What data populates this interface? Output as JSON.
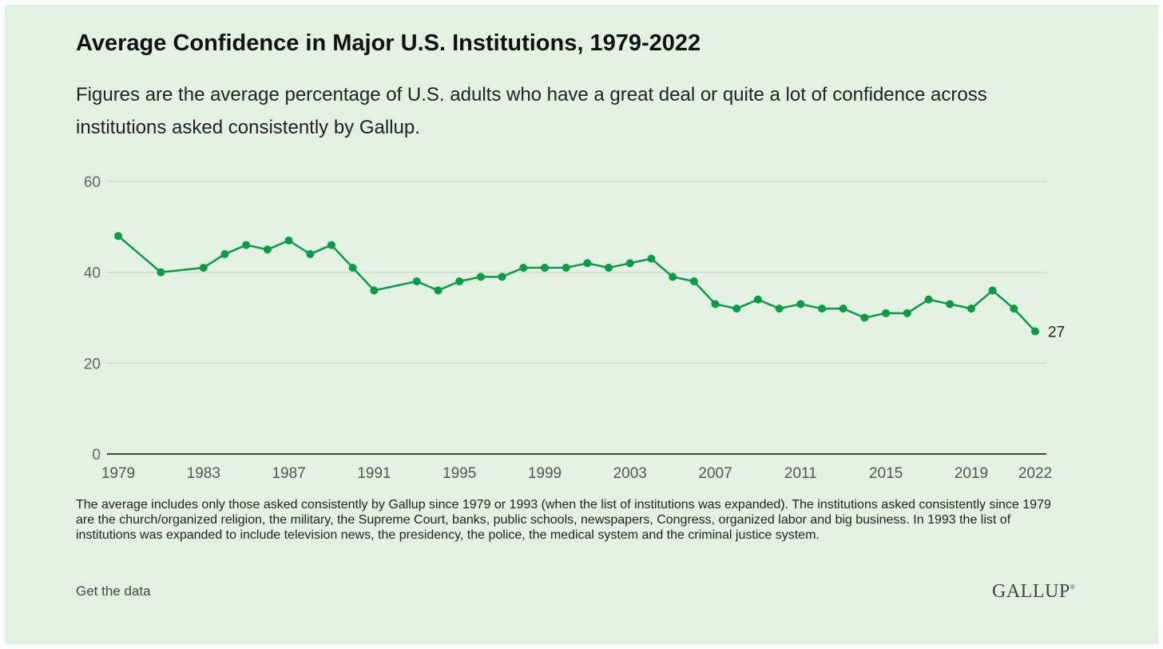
{
  "title": "Average Confidence in Major U.S. Institutions, 1979-2022",
  "subtitle": "Figures are the average percentage of U.S. adults who have a great deal or quite a lot of confidence across institutions asked consistently by Gallup.",
  "footnote": "The average includes only those asked consistently by Gallup since 1979 or 1993 (when the list of institutions was expanded). The institutions asked consistently since 1979 are the church/organized religion, the military, the Supreme Court, banks, public schools, newspapers, Congress, organized labor and big business. In 1993 the list of institutions was expanded to include television news, the presidency, the police, the medical system and the criminal justice system.",
  "get_data_label": "Get the data",
  "logo_text": "GALLUP",
  "logo_mark": "®",
  "colors": {
    "background": "#e3f1e3",
    "line": "#0c9a48",
    "grid": "#c5d6c5",
    "axis": "#111111"
  },
  "chart_data": {
    "type": "line",
    "title": "Average Confidence in Major U.S. Institutions, 1979-2022",
    "xlabel": "",
    "ylabel": "",
    "xlim": [
      1979,
      2022
    ],
    "ylim": [
      0,
      60
    ],
    "yticks": [
      0,
      20,
      40,
      60
    ],
    "xticks": [
      1979,
      1983,
      1987,
      1991,
      1995,
      1999,
      2003,
      2007,
      2011,
      2015,
      2019,
      2022
    ],
    "grid": true,
    "legend": "none",
    "end_label": "27",
    "series": [
      {
        "color": "#0c9a48",
        "x": [
          1979,
          1981,
          1983,
          1984,
          1985,
          1986,
          1987,
          1988,
          1989,
          1990,
          1991,
          1993,
          1994,
          1995,
          1996,
          1997,
          1998,
          1999,
          2000,
          2001,
          2002,
          2003,
          2004,
          2005,
          2006,
          2007,
          2008,
          2009,
          2010,
          2011,
          2012,
          2013,
          2014,
          2015,
          2016,
          2017,
          2018,
          2019,
          2020,
          2021,
          2022
        ],
        "values": [
          48,
          40,
          41,
          44,
          46,
          45,
          47,
          44,
          46,
          41,
          36,
          38,
          36,
          38,
          39,
          39,
          41,
          41,
          41,
          42,
          41,
          42,
          43,
          39,
          38,
          33,
          32,
          34,
          32,
          33,
          32,
          32,
          30,
          31,
          31,
          34,
          33,
          32,
          36,
          32,
          27
        ]
      }
    ]
  }
}
